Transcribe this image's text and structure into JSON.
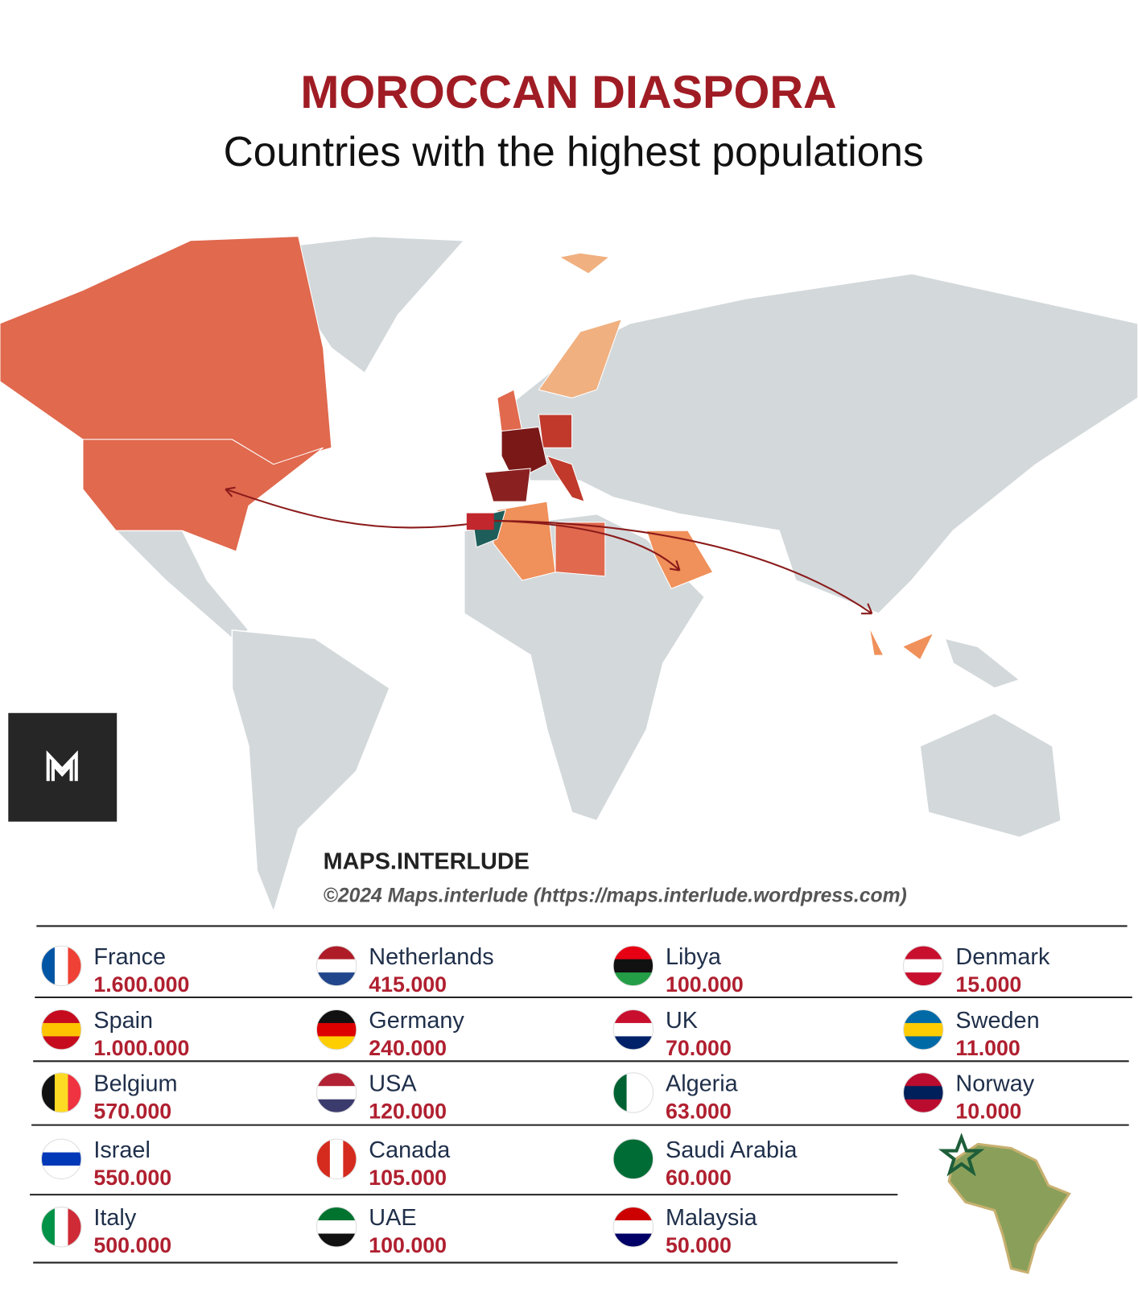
{
  "header": {
    "title": "MOROCCAN DIASPORA",
    "subtitle": "Countries with the highest populations"
  },
  "map": {
    "brand": "MAPS.INTERLUDE",
    "credit": "©2024 Maps.interlude (https://maps.interlude.wordpress.com)"
  },
  "table": {
    "columns": [
      [
        {
          "country": "France",
          "population": "1.600.000"
        },
        {
          "country": "Spain",
          "population": "1.000.000"
        },
        {
          "country": "Belgium",
          "population": "570.000"
        },
        {
          "country": "Israel",
          "population": "550.000"
        },
        {
          "country": "Italy",
          "population": "500.000"
        }
      ],
      [
        {
          "country": "Netherlands",
          "population": "415.000"
        },
        {
          "country": "Germany",
          "population": "240.000"
        },
        {
          "country": "USA",
          "population": "120.000"
        },
        {
          "country": "Canada",
          "population": "105.000"
        },
        {
          "country": "UAE",
          "population": "100.000"
        }
      ],
      [
        {
          "country": "Libya",
          "population": "100.000"
        },
        {
          "country": "UK",
          "population": "70.000"
        },
        {
          "country": "Algeria",
          "population": "63.000"
        },
        {
          "country": "Saudi Arabia",
          "population": "60.000"
        },
        {
          "country": "Malaysia",
          "population": "50.000"
        }
      ],
      [
        {
          "country": "Denmark",
          "population": "15.000"
        },
        {
          "country": "Sweden",
          "population": "11.000"
        },
        {
          "country": "Norway",
          "population": "10.000"
        }
      ]
    ]
  }
}
